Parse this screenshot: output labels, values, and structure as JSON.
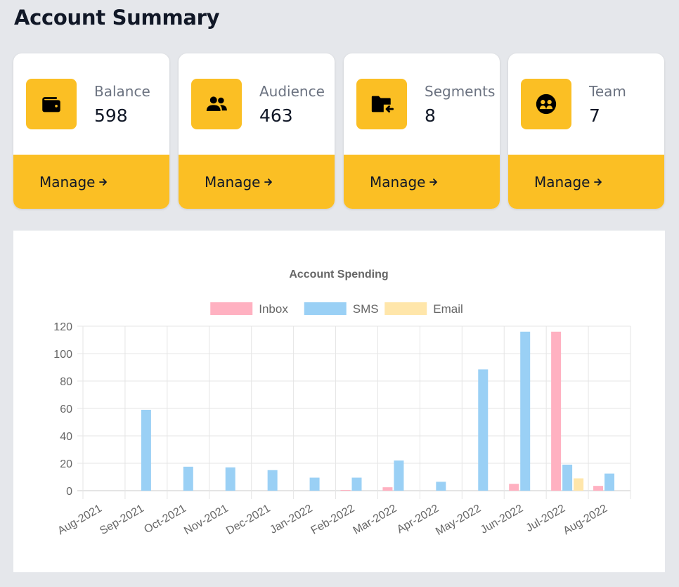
{
  "page": {
    "title": "Account Summary"
  },
  "cards": [
    {
      "label": "Balance",
      "value": "598",
      "action": "Manage",
      "icon": "wallet-icon"
    },
    {
      "label": "Audience",
      "value": "463",
      "action": "Manage",
      "icon": "users-icon"
    },
    {
      "label": "Segments",
      "value": "8",
      "action": "Manage",
      "icon": "folder-import-icon"
    },
    {
      "label": "Team",
      "value": "7",
      "action": "Manage",
      "icon": "team-icon"
    }
  ],
  "colors": {
    "accent": "#fbbf24",
    "background": "#e5e7eb",
    "card": "#ffffff"
  },
  "chart_data": {
    "type": "bar",
    "title": "Account Spending",
    "categories": [
      "Aug-2021",
      "Sep-2021",
      "Oct-2021",
      "Nov-2021",
      "Dec-2021",
      "Jan-2022",
      "Feb-2022",
      "Mar-2022",
      "Apr-2022",
      "May-2022",
      "Jun-2022",
      "Jul-2022",
      "Aug-2022"
    ],
    "series": [
      {
        "name": "Inbox",
        "color": "#ffb1c1",
        "values": [
          0,
          0,
          0,
          0,
          0,
          0,
          0.5,
          2.5,
          0,
          0,
          5,
          116,
          3.5
        ]
      },
      {
        "name": "SMS",
        "color": "#9ad0f5",
        "values": [
          0,
          59,
          17.5,
          17,
          15,
          9.5,
          9.5,
          22,
          6.5,
          88.5,
          116,
          19,
          12.5
        ]
      },
      {
        "name": "Email",
        "color": "#ffe6aa",
        "values": [
          0,
          0,
          0,
          0,
          0,
          0,
          0,
          0,
          0,
          0,
          0,
          9,
          0
        ]
      }
    ],
    "ylim": [
      0,
      120
    ],
    "yticks": [
      "0",
      "20",
      "40",
      "60",
      "80",
      "100",
      "120"
    ],
    "grid": true,
    "legend": "top"
  }
}
